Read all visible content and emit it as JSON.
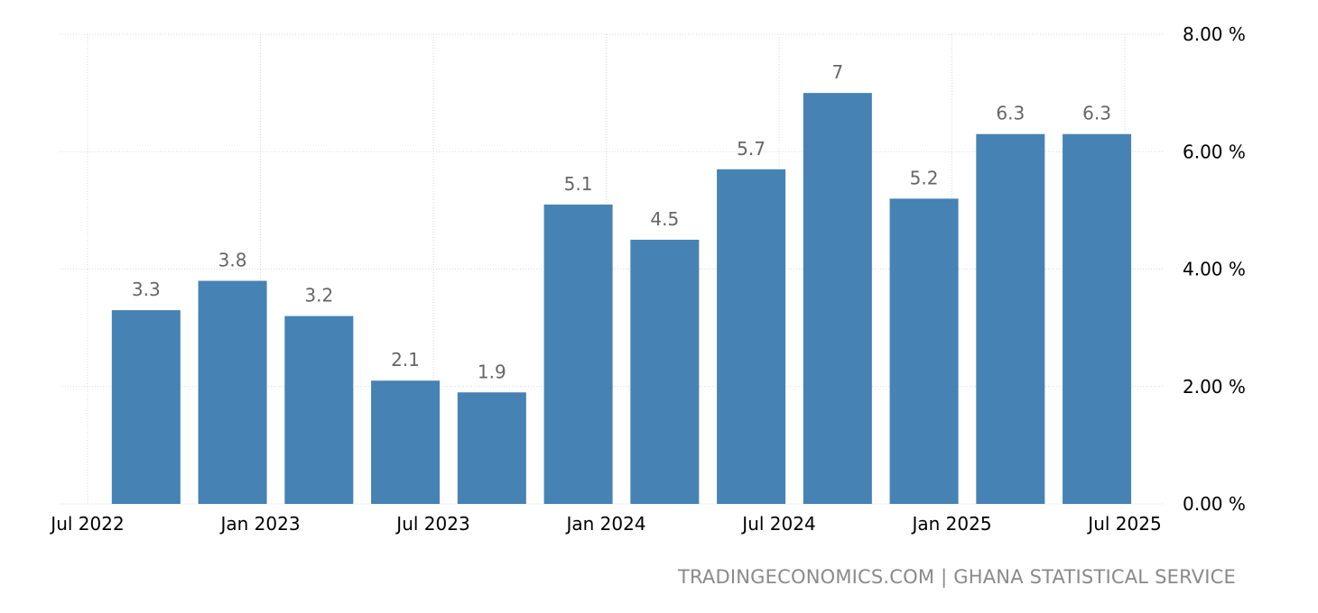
{
  "chart_data": {
    "type": "bar",
    "x": [
      "2022-09",
      "2022-12",
      "2023-03",
      "2023-06",
      "2023-09",
      "2023-12",
      "2024-03",
      "2024-06",
      "2024-09",
      "2024-12",
      "2025-03",
      "2025-06"
    ],
    "values": [
      3.3,
      3.8,
      3.2,
      2.1,
      1.9,
      5.1,
      4.5,
      5.7,
      7,
      5.2,
      6.3,
      6.3
    ],
    "value_labels": [
      "3.3",
      "3.8",
      "3.2",
      "2.1",
      "1.9",
      "5.1",
      "4.5",
      "5.7",
      "7",
      "5.2",
      "6.3",
      "6.3"
    ],
    "x_ticks": [
      "Jul 2022",
      "Jan 2023",
      "Jul 2023",
      "Jan 2024",
      "Jul 2024",
      "Jan 2025",
      "Jul 2025"
    ],
    "y_ticks": [
      "0.00 %",
      "2.00 %",
      "4.00 %",
      "6.00 %",
      "8.00 %"
    ],
    "ylim": [
      0,
      8
    ],
    "grid": true,
    "y_axis_side": "right",
    "colors": {
      "bar": "#4682b4",
      "label": "#666666",
      "grid": "#d9d9d9"
    }
  },
  "source": "TRADINGECONOMICS.COM | GHANA STATISTICAL SERVICE"
}
